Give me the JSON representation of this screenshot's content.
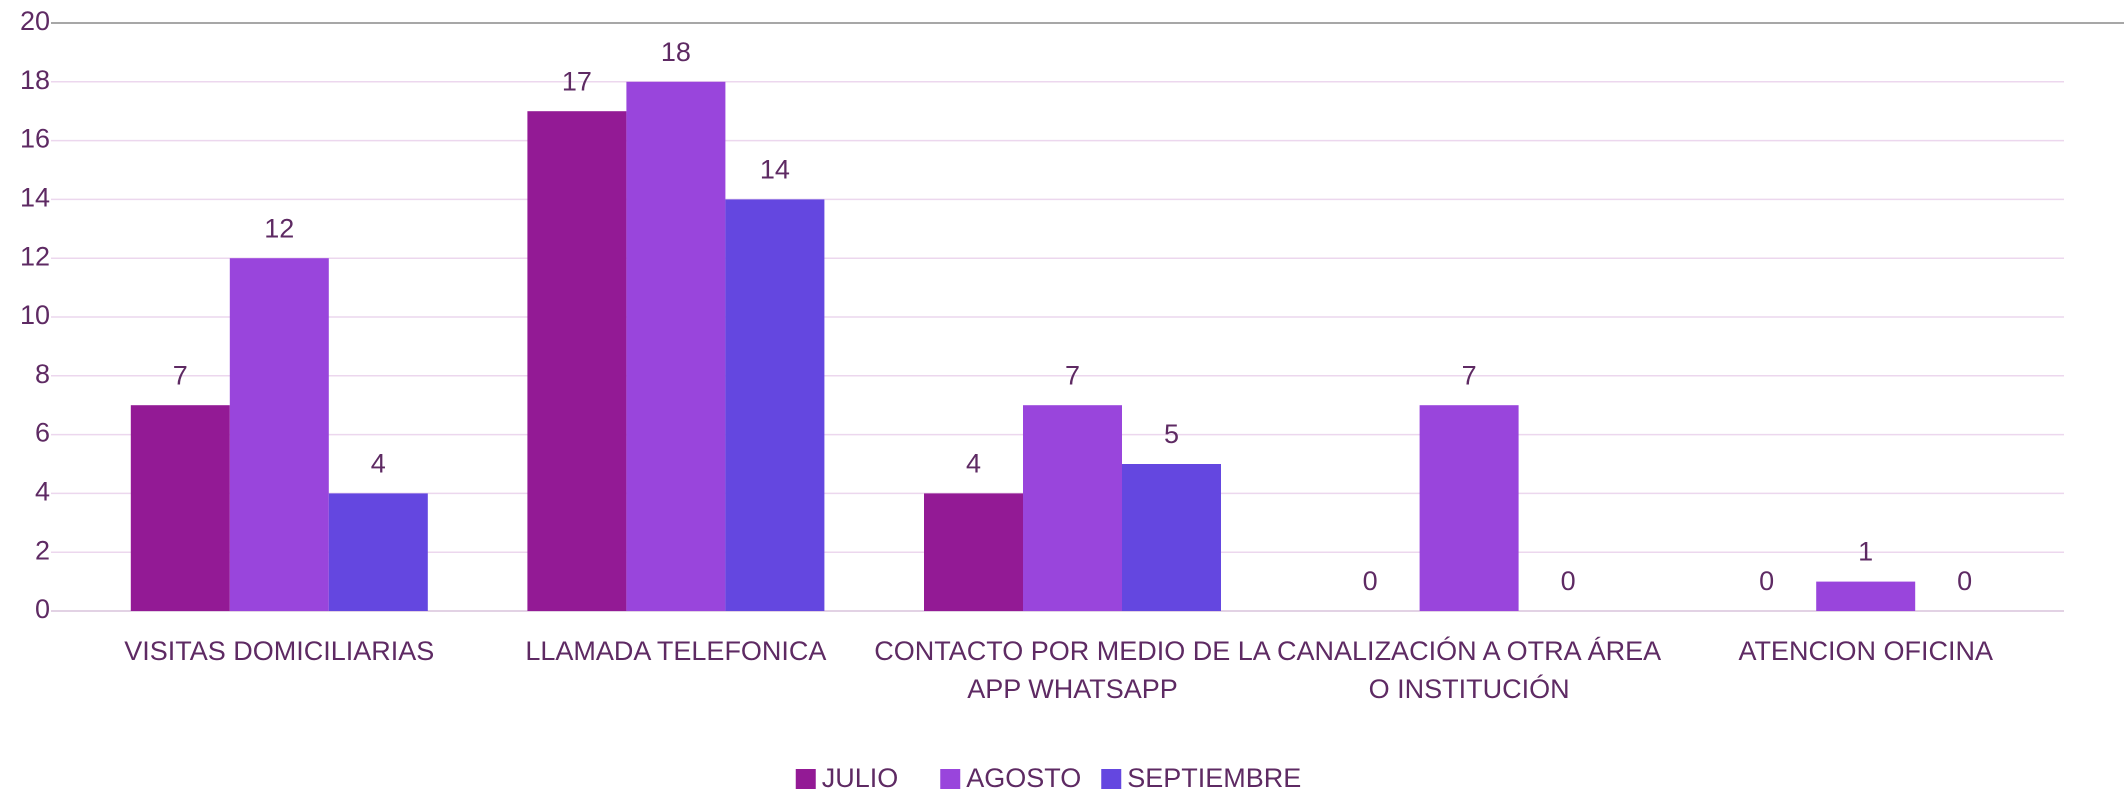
{
  "chart_data": {
    "type": "bar",
    "categories": [
      "VISITAS DOMICILIARIAS",
      "LLAMADA TELEFONICA",
      "CONTACTO POR MEDIO DE LA APP WHATSAPP",
      "CANALIZACIÓN A OTRA ÁREA O INSTITUCIÓN",
      "ATENCION OFICINA"
    ],
    "series": [
      {
        "name": "JULIO",
        "color": "#931a95",
        "values": [
          7,
          17,
          4,
          0,
          0
        ]
      },
      {
        "name": "AGOSTO",
        "color": "#9945dc",
        "values": [
          12,
          18,
          7,
          7,
          1
        ]
      },
      {
        "name": "SEPTIEMBRE",
        "color": "#6447e0",
        "values": [
          4,
          14,
          5,
          0,
          0
        ]
      }
    ],
    "ylim": [
      0,
      20
    ],
    "yticks": [
      0,
      2,
      4,
      6,
      8,
      10,
      12,
      14,
      16,
      18,
      20
    ],
    "grid": true,
    "legend": "bottom"
  }
}
